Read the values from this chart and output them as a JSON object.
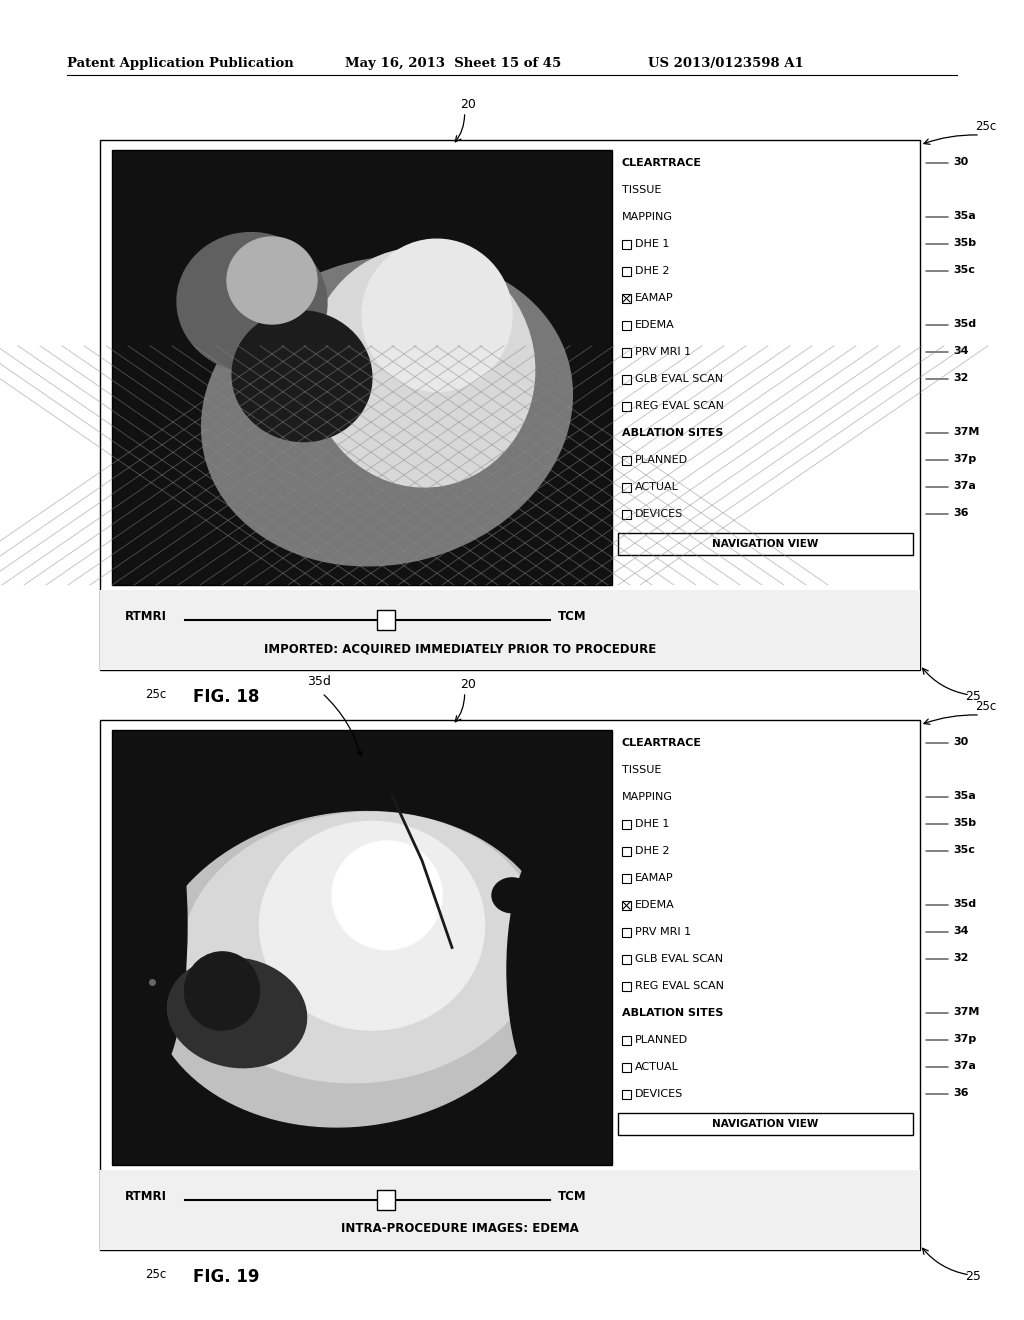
{
  "bg_color": "#ffffff",
  "header_text": "Patent Application Publication",
  "header_date": "May 16, 2013  Sheet 15 of 45",
  "header_patent": "US 2013/0123598 A1",
  "fig18": {
    "label": "FIG. 18",
    "caption": "IMPORTED: ACQUIRED IMMEDIATELY PRIOR TO PROCEDURE",
    "slider_label_left": "RTMRI",
    "slider_label_right": "TCM",
    "checked_item": "EAMAP",
    "panel_items": [
      {
        "text": "CLEARTRACE",
        "ref": "30",
        "bold": true,
        "checked": false,
        "checkbox": false
      },
      {
        "text": "TISSUE",
        "ref": null,
        "bold": false,
        "checkbox": false
      },
      {
        "text": "MAPPING",
        "ref": "35a",
        "bold": false,
        "checkbox": false
      },
      {
        "text": "DHE 1",
        "ref": "35b",
        "bold": false,
        "checkbox": true,
        "checked": false
      },
      {
        "text": "DHE 2",
        "ref": "35c",
        "bold": false,
        "checkbox": true,
        "checked": false
      },
      {
        "text": "EAMAP",
        "ref": null,
        "bold": false,
        "checkbox": true,
        "checked": true
      },
      {
        "text": "EDEMA",
        "ref": "35d",
        "bold": false,
        "checkbox": true,
        "checked": false
      },
      {
        "text": "PRV MRI 1",
        "ref": "34",
        "bold": false,
        "checkbox": true,
        "checked": false
      },
      {
        "text": "GLB EVAL SCAN",
        "ref": "32",
        "bold": false,
        "checkbox": true,
        "checked": false
      },
      {
        "text": "REG EVAL SCAN",
        "ref": null,
        "bold": false,
        "checkbox": true,
        "checked": false
      },
      {
        "text": "ABLATION SITES",
        "ref": "37M",
        "bold": true,
        "checkbox": false
      },
      {
        "text": "PLANNED",
        "ref": "37p",
        "bold": false,
        "checkbox": true,
        "checked": false
      },
      {
        "text": "ACTUAL",
        "ref": "37a",
        "bold": false,
        "checkbox": true,
        "checked": false
      },
      {
        "text": "DEVICES",
        "ref": "36",
        "bold": false,
        "checkbox": true,
        "checked": false
      },
      {
        "text": "NAVIGATION VIEW",
        "ref": null,
        "bold": true,
        "checkbox": false,
        "nav_box": true
      }
    ]
  },
  "fig19": {
    "label": "FIG. 19",
    "caption": "INTRA-PROCEDURE IMAGES: EDEMA",
    "slider_label_left": "RTMRI",
    "slider_label_right": "TCM",
    "checked_item": "EDEMA",
    "panel_items": [
      {
        "text": "CLEARTRACE",
        "ref": "30",
        "bold": true,
        "checked": false,
        "checkbox": false
      },
      {
        "text": "TISSUE",
        "ref": null,
        "bold": false,
        "checkbox": false
      },
      {
        "text": "MAPPING",
        "ref": "35a",
        "bold": false,
        "checkbox": false
      },
      {
        "text": "DHE 1",
        "ref": "35b",
        "bold": false,
        "checkbox": true,
        "checked": false
      },
      {
        "text": "DHE 2",
        "ref": "35c",
        "bold": false,
        "checkbox": true,
        "checked": false
      },
      {
        "text": "EAMAP",
        "ref": null,
        "bold": false,
        "checkbox": true,
        "checked": false
      },
      {
        "text": "EDEMA",
        "ref": "35d",
        "bold": false,
        "checkbox": true,
        "checked": true
      },
      {
        "text": "PRV MRI 1",
        "ref": "34",
        "bold": false,
        "checkbox": true,
        "checked": false
      },
      {
        "text": "GLB EVAL SCAN",
        "ref": "32",
        "bold": false,
        "checkbox": true,
        "checked": false
      },
      {
        "text": "REG EVAL SCAN",
        "ref": null,
        "bold": false,
        "checkbox": true,
        "checked": false
      },
      {
        "text": "ABLATION SITES",
        "ref": "37M",
        "bold": true,
        "checkbox": false
      },
      {
        "text": "PLANNED",
        "ref": "37p",
        "bold": false,
        "checkbox": true,
        "checked": false
      },
      {
        "text": "ACTUAL",
        "ref": "37a",
        "bold": false,
        "checkbox": true,
        "checked": false
      },
      {
        "text": "DEVICES",
        "ref": "36",
        "bold": false,
        "checkbox": true,
        "checked": false
      },
      {
        "text": "NAVIGATION VIEW",
        "ref": null,
        "bold": true,
        "checkbox": false,
        "nav_box": true
      }
    ]
  }
}
